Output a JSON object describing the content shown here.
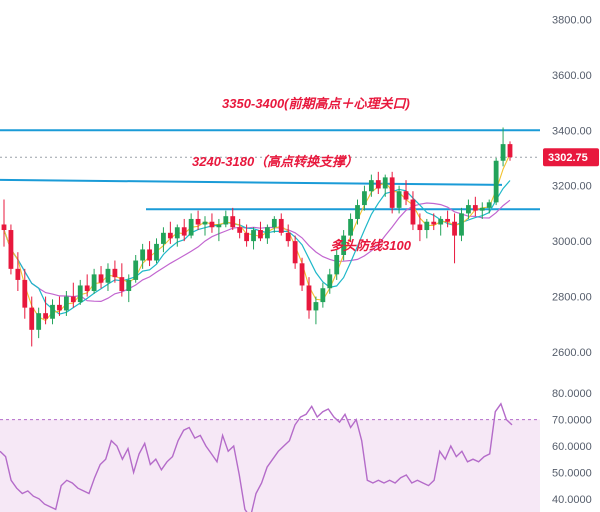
{
  "chart_data": [
    {
      "type": "candlestick",
      "price_axis": {
        "ticks": [
          "3800.00",
          "3600.00",
          "3400.00",
          "3200.00",
          "3000.00",
          "2800.00",
          "2600.00"
        ],
        "ylim": [
          2535,
          3870
        ]
      },
      "current_price": {
        "value": 3302.75,
        "label": "3302.75",
        "color": "#e8183d"
      },
      "levels": [
        {
          "name": "resistance",
          "value": 3400,
          "color": "#1a9bd7"
        },
        {
          "name": "support-upper",
          "value": 3210,
          "color": "#1a9bd7"
        },
        {
          "name": "support-lower",
          "value": 3115,
          "color": "#1a9bd7"
        }
      ],
      "annotations": [
        {
          "text": "3350-3400(前期高点＋心理关口)"
        },
        {
          "text": "3240-3180（高点转换支撑）"
        },
        {
          "text": "多头防线3100"
        }
      ],
      "candles": [
        [
          3060,
          3150,
          2980,
          3040
        ],
        [
          3040,
          3060,
          2880,
          2900
        ],
        [
          2900,
          2960,
          2820,
          2860
        ],
        [
          2860,
          2900,
          2720,
          2760
        ],
        [
          2760,
          2800,
          2620,
          2680
        ],
        [
          2680,
          2760,
          2650,
          2740
        ],
        [
          2740,
          2800,
          2700,
          2720
        ],
        [
          2720,
          2790,
          2700,
          2770
        ],
        [
          2770,
          2800,
          2730,
          2750
        ],
        [
          2750,
          2820,
          2730,
          2800
        ],
        [
          2800,
          2850,
          2760,
          2780
        ],
        [
          2780,
          2860,
          2770,
          2840
        ],
        [
          2840,
          2880,
          2800,
          2820
        ],
        [
          2820,
          2900,
          2810,
          2880
        ],
        [
          2880,
          2910,
          2830,
          2850
        ],
        [
          2850,
          2920,
          2820,
          2900
        ],
        [
          2900,
          2930,
          2850,
          2870
        ],
        [
          2870,
          2920,
          2800,
          2820
        ],
        [
          2820,
          2880,
          2780,
          2860
        ],
        [
          2860,
          2950,
          2850,
          2930
        ],
        [
          2930,
          2990,
          2900,
          2970
        ],
        [
          2970,
          3000,
          2910,
          2930
        ],
        [
          2930,
          3010,
          2920,
          2990
        ],
        [
          2990,
          3050,
          2960,
          3030
        ],
        [
          3030,
          3070,
          2990,
          3010
        ],
        [
          3010,
          3060,
          2980,
          3050
        ],
        [
          3050,
          3080,
          3000,
          3020
        ],
        [
          3020,
          3100,
          3010,
          3080
        ],
        [
          3080,
          3110,
          3040,
          3060
        ],
        [
          3060,
          3090,
          3020,
          3070
        ],
        [
          3070,
          3100,
          3030,
          3050
        ],
        [
          3050,
          3080,
          3000,
          3060
        ],
        [
          3060,
          3110,
          3050,
          3090
        ],
        [
          3090,
          3120,
          3040,
          3050
        ],
        [
          3050,
          3080,
          3010,
          3030
        ],
        [
          3030,
          3060,
          2980,
          3000
        ],
        [
          3000,
          3050,
          2970,
          3040
        ],
        [
          3040,
          3070,
          3000,
          3010
        ],
        [
          3010,
          3060,
          2990,
          3050
        ],
        [
          3050,
          3090,
          3030,
          3080
        ],
        [
          3080,
          3100,
          3020,
          3030
        ],
        [
          3030,
          3060,
          2980,
          3000
        ],
        [
          3000,
          3020,
          2900,
          2920
        ],
        [
          2920,
          2940,
          2820,
          2840
        ],
        [
          2840,
          2870,
          2720,
          2750
        ],
        [
          2750,
          2800,
          2700,
          2780
        ],
        [
          2780,
          2850,
          2760,
          2830
        ],
        [
          2830,
          2900,
          2810,
          2880
        ],
        [
          2880,
          2970,
          2860,
          2950
        ],
        [
          2950,
          3040,
          2930,
          3020
        ],
        [
          3020,
          3100,
          3000,
          3080
        ],
        [
          3080,
          3150,
          3060,
          3130
        ],
        [
          3130,
          3200,
          3110,
          3180
        ],
        [
          3180,
          3240,
          3160,
          3220
        ],
        [
          3220,
          3250,
          3170,
          3190
        ],
        [
          3190,
          3240,
          3160,
          3230
        ],
        [
          3230,
          3250,
          3100,
          3120
        ],
        [
          3120,
          3200,
          3100,
          3180
        ],
        [
          3180,
          3220,
          3130,
          3150
        ],
        [
          3150,
          3180,
          3040,
          3060
        ],
        [
          3060,
          3100,
          3000,
          3040
        ],
        [
          3040,
          3080,
          3010,
          3070
        ],
        [
          3070,
          3100,
          3040,
          3060
        ],
        [
          3060,
          3090,
          3020,
          3080
        ],
        [
          3080,
          3110,
          3050,
          3070
        ],
        [
          3070,
          3100,
          2920,
          3020
        ],
        [
          3020,
          3120,
          3000,
          3100
        ],
        [
          3100,
          3150,
          3080,
          3130
        ],
        [
          3130,
          3160,
          3090,
          3110
        ],
        [
          3110,
          3140,
          3080,
          3120
        ],
        [
          3120,
          3150,
          3100,
          3140
        ],
        [
          3140,
          3300,
          3130,
          3290
        ],
        [
          3290,
          3410,
          3270,
          3350
        ],
        [
          3350,
          3360,
          3290,
          3302.75
        ]
      ],
      "ma_fast_color": "#f2c230",
      "ma_mid_color": "#1fb8c9",
      "ma_slow_color": "#c266d0",
      "bull_color": "#22a35a",
      "bear_color": "#e8183d"
    },
    {
      "type": "line",
      "name": "oscillator",
      "ticks": [
        "80.0000",
        "70.0000",
        "60.0000",
        "50.0000",
        "40.0000"
      ],
      "ylim": [
        35,
        85
      ],
      "overbought": 70,
      "line_color": "#b46bc9",
      "band_color": "#f6e8f6",
      "values": [
        58,
        56,
        47,
        44,
        42,
        43,
        41,
        40,
        38,
        37,
        36,
        45,
        47,
        46,
        44,
        43,
        42,
        48,
        53,
        55,
        62,
        60,
        55,
        59,
        50,
        57,
        61,
        53,
        55,
        51,
        54,
        56,
        62,
        66,
        67,
        63,
        64,
        60,
        57,
        54,
        64,
        58,
        60,
        49,
        36,
        33,
        42,
        46,
        52,
        55,
        58,
        60,
        62,
        68,
        71,
        72,
        75,
        71,
        73,
        74,
        71,
        69,
        72,
        67,
        70,
        62,
        47,
        46,
        47,
        46,
        47,
        46,
        48,
        49,
        46,
        47,
        46,
        45,
        47,
        58,
        55,
        60,
        56,
        58,
        54,
        55,
        54,
        56,
        57,
        73,
        76,
        70,
        68
      ]
    }
  ]
}
